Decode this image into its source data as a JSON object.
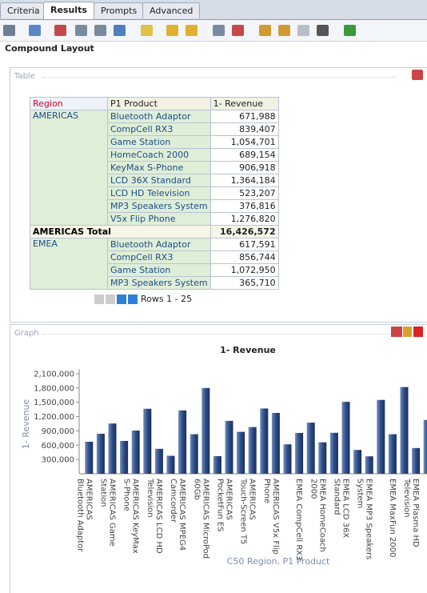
{
  "tabs": [
    "Criteria",
    "Results",
    "Prompts",
    "Advanced"
  ],
  "layout_title": "Compound Layout",
  "table_section": {
    "label": "Table",
    "columns": [
      "Region",
      "P1 Product",
      "1- Revenue"
    ],
    "groups": [
      {
        "region": "AMERICAS",
        "rows": [
          [
            "Bluetooth Adaptor",
            "671,988"
          ],
          [
            "CompCell RX3",
            "839,407"
          ],
          [
            "Game Station",
            "1,054,701"
          ],
          [
            "HomeCoach 2000",
            "689,154"
          ],
          [
            "KeyMax S-Phone",
            "906,918"
          ],
          [
            "LCD 36X Standard",
            "1,364,184"
          ],
          [
            "LCD HD Television",
            "523,207"
          ],
          [
            "MP3 Speakers System",
            "376,816"
          ],
          [
            "V5x Flip Phone",
            "1,276,820"
          ]
        ],
        "total": [
          "AMERICAS Total",
          "16,426,572"
        ]
      },
      {
        "region": "EMEA",
        "rows": [
          [
            "Bluetooth Adaptor",
            "617,591"
          ],
          [
            "CompCell RX3",
            "856,744"
          ],
          [
            "Game Station",
            "1,072,950"
          ],
          [
            "MP3 Speakers System",
            "365,710"
          ]
        ]
      }
    ],
    "pager": "Rows 1 - 25"
  },
  "graph_section": {
    "label": "Graph"
  },
  "chart_data": {
    "type": "bar",
    "title": "1- Revenue",
    "x_label": "C50 Region, P1 Product",
    "y_label": "1- Revenue",
    "categories": [
      "AMERICAS Bluetooth Adaptor",
      null,
      "AMERICAS Game Station",
      null,
      "AMERICAS KeyMax S-Phone",
      null,
      "AMERICAS LCD HD Television",
      null,
      "AMERICAS MPEG4 Camcorder",
      null,
      "AMERICAS MicroPod 60Gb",
      null,
      "AMERICAS PocketFun ES",
      null,
      "AMERICAS Touch-Screen T5",
      null,
      "AMERICAS V5x Flip Phone",
      null,
      "EMEA CompCell RX3",
      null,
      "EMEA HomeCoach 2000",
      null,
      "EMEA LCD 36X Standard",
      null,
      "EMEA MP3 Speakers System",
      null,
      "EMEA MaxFun 2000",
      null,
      "EMEA Plasma HD Television",
      null
    ],
    "values": [
      671988,
      839407,
      1054701,
      689154,
      906918,
      1364184,
      523207,
      376816,
      1330000,
      830000,
      1800000,
      370000,
      1110000,
      880000,
      980000,
      1370000,
      1276820,
      617591,
      856744,
      1072950,
      660000,
      860000,
      1510000,
      500000,
      365710,
      1550000,
      830000,
      1820000,
      540000,
      1130000
    ],
    "color": "#2d4d86",
    "ylim": [
      0,
      2200000
    ],
    "yticks": [
      {
        "value": 300000,
        "label": "300,000"
      },
      {
        "value": 600000,
        "label": "600,000"
      },
      {
        "value": 900000,
        "label": "900,000"
      },
      {
        "value": 1200000,
        "label": "1,200,000"
      },
      {
        "value": 1500000,
        "label": "1,500,000"
      },
      {
        "value": 1800000,
        "label": "1,800,000"
      },
      {
        "value": 2100000,
        "label": "2,100,000"
      }
    ]
  }
}
